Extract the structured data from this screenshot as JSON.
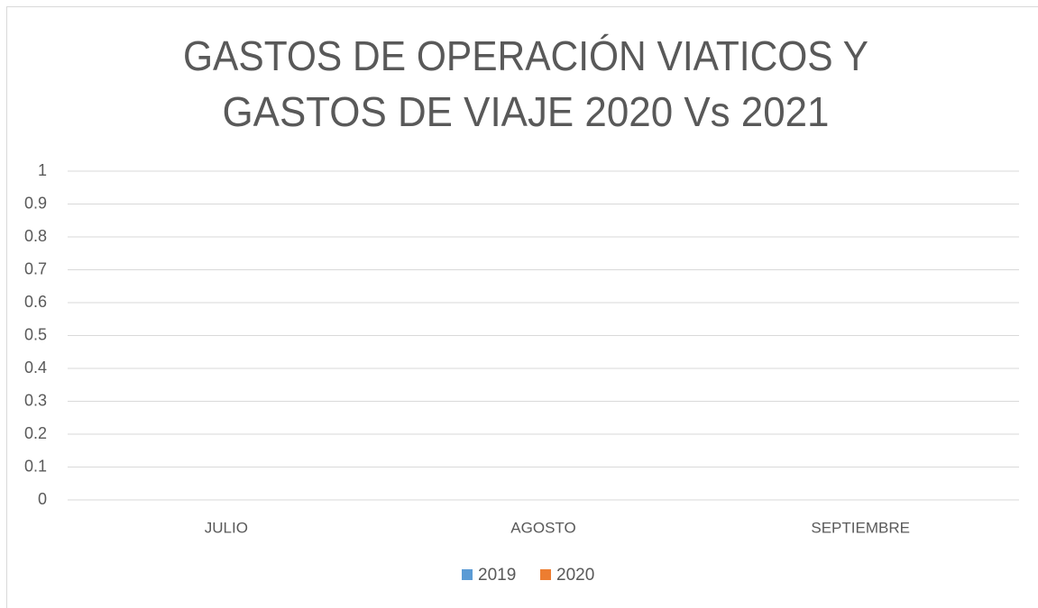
{
  "chart_data": {
    "type": "bar",
    "title": [
      "GASTOS DE OPERACIÓN VIATICOS Y",
      "GASTOS DE VIAJE 2020 Vs 2021"
    ],
    "categories": [
      "JULIO",
      "AGOSTO",
      "SEPTIEMBRE"
    ],
    "series": [
      {
        "name": "2019",
        "color": "#5b9bd5",
        "values": [
          0,
          0,
          0
        ]
      },
      {
        "name": "2020",
        "color": "#ed7d31",
        "values": [
          0,
          0,
          0
        ]
      }
    ],
    "ylim": [
      0,
      1
    ],
    "yticks": [
      0,
      0.1,
      0.2,
      0.3,
      0.4,
      0.5,
      0.6,
      0.7,
      0.8,
      0.9,
      1
    ],
    "grid": true,
    "legend": "bottom"
  }
}
